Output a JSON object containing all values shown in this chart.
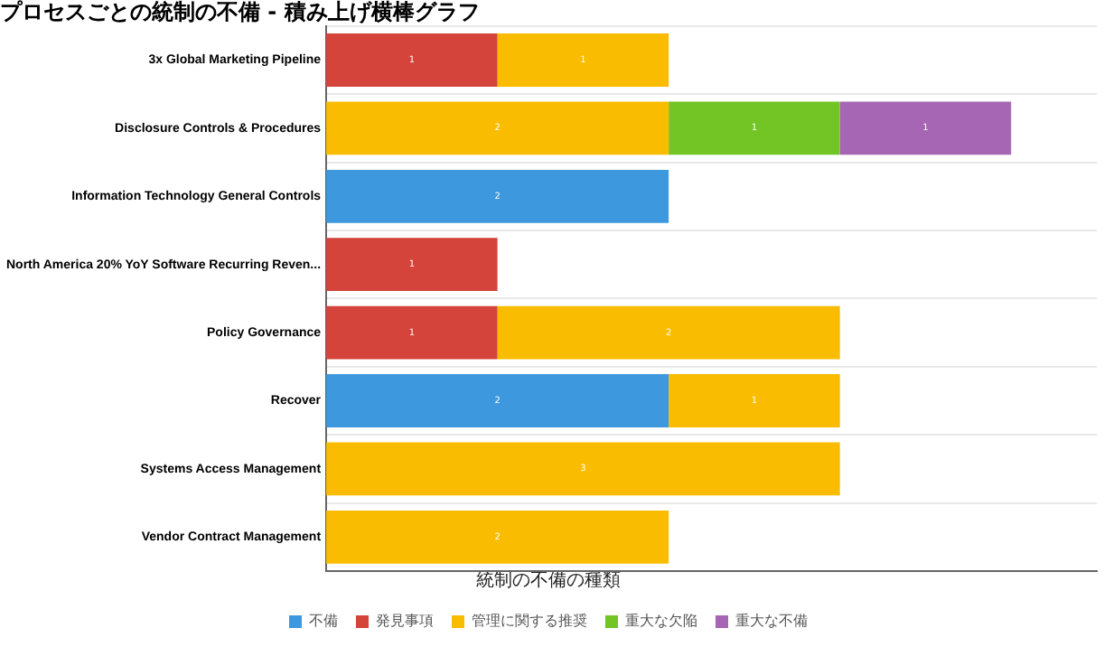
{
  "chart_data": {
    "type": "bar",
    "orientation": "horizontal",
    "stacked": true,
    "title": "プロセスごとの統制の不備 - 積み上げ横棒グラフ",
    "legend_title": "統制の不備の種類",
    "legend": "bottom",
    "grid": "y",
    "tick_labels": "y",
    "data_labels": true,
    "categories": [
      "3x Global Marketing Pipeline",
      "Disclosure Controls & Procedures",
      "Information Technology General Controls",
      "North America 20% YoY Software Recurring Reven...",
      "Policy Governance",
      "Recover",
      "Systems Access Management",
      "Vendor Contract Management"
    ],
    "series": [
      {
        "name": "不備",
        "color": "#3d98dd",
        "values": [
          null,
          null,
          2,
          null,
          null,
          2,
          null,
          null
        ]
      },
      {
        "name": "発見事項",
        "color": "#d4443a",
        "values": [
          1,
          null,
          null,
          1,
          1,
          null,
          null,
          null
        ]
      },
      {
        "name": "管理に関する推奨",
        "color": "#f9bc00",
        "values": [
          1,
          2,
          null,
          null,
          2,
          1,
          3,
          2
        ]
      },
      {
        "name": "重大な欠陥",
        "color": "#72c524",
        "values": [
          null,
          1,
          null,
          null,
          null,
          null,
          null,
          null
        ]
      },
      {
        "name": "重大な不備",
        "color": "#a766b4",
        "values": [
          null,
          1,
          null,
          null,
          null,
          null,
          null,
          null
        ]
      }
    ]
  }
}
